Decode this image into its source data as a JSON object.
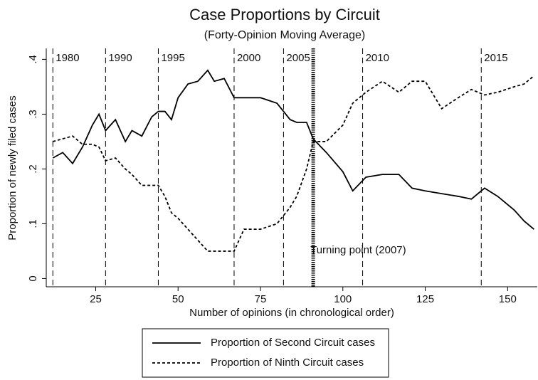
{
  "chart_data": {
    "type": "line",
    "title": "Case Proportions by Circuit",
    "subtitle": "(Forty-Opinion Moving Average)",
    "x_label": "Number of opinions (in chronological order)",
    "y_label": "Proportion of newly filed cases",
    "x": [
      12,
      15,
      18,
      21,
      24,
      26,
      28,
      31,
      34,
      36,
      39,
      42,
      44,
      46,
      48,
      50,
      53,
      56,
      59,
      61,
      64,
      67,
      70,
      75,
      80,
      84,
      86,
      89,
      91,
      95,
      100,
      103,
      107,
      112,
      117,
      121,
      125,
      130,
      135,
      139,
      143,
      147,
      152,
      155,
      158
    ],
    "series": [
      {
        "name": "Proportion of Second Circuit cases",
        "color": "#000000",
        "dash": "none",
        "values": [
          0.22,
          0.23,
          0.21,
          0.24,
          0.28,
          0.3,
          0.27,
          0.29,
          0.25,
          0.27,
          0.26,
          0.295,
          0.305,
          0.305,
          0.29,
          0.33,
          0.355,
          0.36,
          0.38,
          0.36,
          0.365,
          0.33,
          0.33,
          0.33,
          0.32,
          0.29,
          0.285,
          0.285,
          0.255,
          0.23,
          0.195,
          0.16,
          0.185,
          0.19,
          0.19,
          0.165,
          0.16,
          0.155,
          0.15,
          0.145,
          0.165,
          0.15,
          0.125,
          0.105,
          0.09
        ]
      },
      {
        "name": "Proportion of Ninth Circuit cases",
        "color": "#000000",
        "dash": "4 3",
        "values": [
          0.25,
          0.255,
          0.26,
          0.245,
          0.245,
          0.24,
          0.215,
          0.22,
          0.2,
          0.19,
          0.17,
          0.17,
          0.17,
          0.15,
          0.12,
          0.11,
          0.09,
          0.07,
          0.05,
          0.05,
          0.05,
          0.05,
          0.09,
          0.09,
          0.1,
          0.13,
          0.15,
          0.2,
          0.25,
          0.25,
          0.28,
          0.32,
          0.34,
          0.36,
          0.34,
          0.36,
          0.36,
          0.31,
          0.33,
          0.345,
          0.335,
          0.34,
          0.35,
          0.355,
          0.37
        ]
      }
    ],
    "xlim": [
      10,
      159
    ],
    "xticks": [
      25,
      50,
      75,
      100,
      125,
      150
    ],
    "ylim": [
      -0.015,
      0.42
    ],
    "yticks": [
      0,
      {
        "value": 0.1,
        "label": ".1"
      },
      {
        "value": 0.2,
        "label": ".2"
      },
      {
        "value": 0.3,
        "label": ".3"
      },
      {
        "value": 0.4,
        "label": ".4"
      }
    ],
    "era_lines": [
      {
        "x": 12,
        "label": "1980"
      },
      {
        "x": 28,
        "label": "1990"
      },
      {
        "x": 44,
        "label": "1995"
      },
      {
        "x": 67,
        "label": "2000"
      },
      {
        "x": 82,
        "label": "2005"
      },
      {
        "x": 106,
        "label": "2010"
      },
      {
        "x": 142,
        "label": "2015"
      }
    ],
    "turning_point": {
      "x": 91,
      "label": "Turning point (2007)"
    },
    "legend": "bottom"
  }
}
